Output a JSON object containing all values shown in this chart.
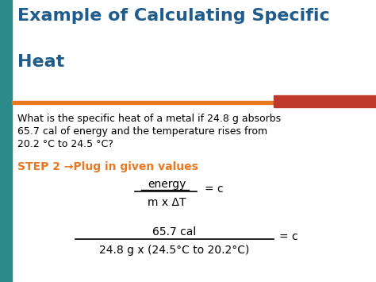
{
  "title_line1": "Example of Calculating Specific",
  "title_line2": "Heat",
  "title_color": "#1F5C8B",
  "background_color": "#FFFFFF",
  "left_bar_color": "#2B8A8A",
  "orange_line_color": "#E87722",
  "red_bar_color": "#C0392B",
  "body_text_line1": "What is the specific heat of a metal if 24.8 g absorbs",
  "body_text_line2": "65.7 cal of energy and the temperature rises from",
  "body_text_line3": "20.2 °C to 24.5 °C?",
  "step_text": "STEP 2 →Plug in given values",
  "step_color": "#E87722",
  "formula_numerator": "energy",
  "formula_denominator": "m x ΔT",
  "formula_equals": "= c",
  "fraction2_numerator": "65.7 cal",
  "fraction2_denominator": "24.8 g x (24.5°C to 20.2°C)",
  "fraction2_equals": "= c",
  "body_text_color": "#000000",
  "figsize": [
    4.74,
    3.55
  ],
  "dpi": 100
}
